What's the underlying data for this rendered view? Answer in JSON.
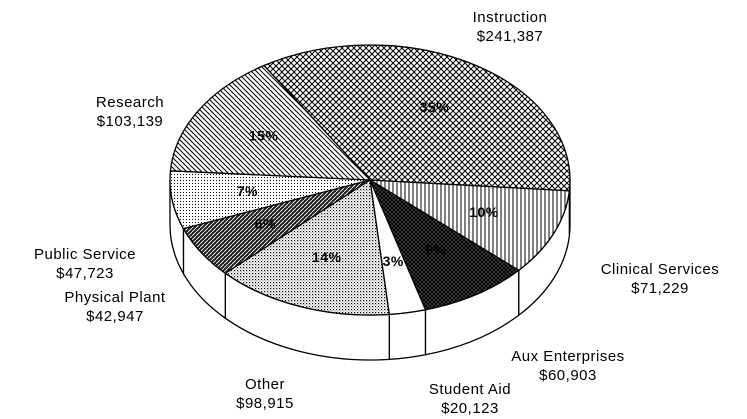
{
  "chart_data": {
    "type": "pie",
    "categories": [
      "Instruction",
      "Clinical Services",
      "Aux Enterprises",
      "Student Aid",
      "Other",
      "Physical Plant",
      "Public Service",
      "Research"
    ],
    "values": [
      241387,
      71229,
      60903,
      20123,
      98915,
      42947,
      47723,
      103139
    ],
    "value_labels": [
      "$241,387",
      "$71,229",
      "$60,903",
      "$20,123",
      "$98,915",
      "$42,947",
      "$47,723",
      "$103,139"
    ],
    "percentages": [
      35,
      10,
      9,
      3,
      14,
      6,
      7,
      15
    ],
    "percentage_labels": [
      "35%",
      "10%",
      "9%",
      "3%",
      "14%",
      "6%",
      "7%",
      "15%"
    ],
    "color": "#000000"
  }
}
